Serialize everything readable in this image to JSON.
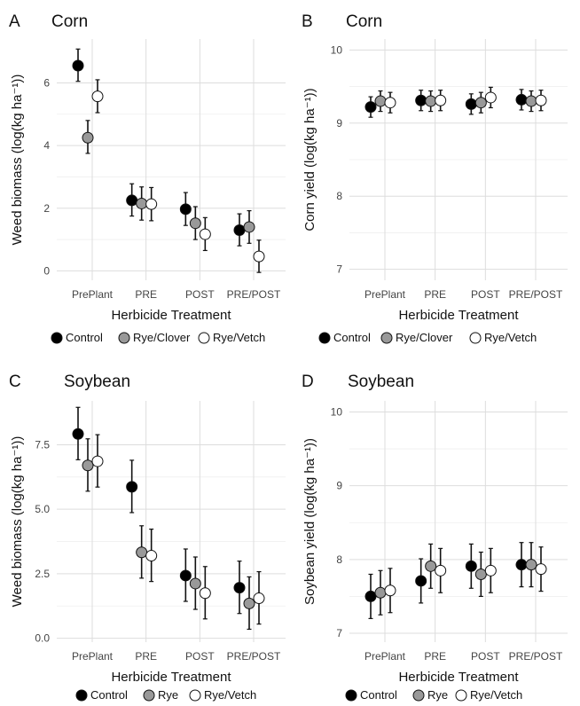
{
  "chart_data": [
    {
      "panel_label": "A",
      "title": "Corn",
      "type": "scatter",
      "categories": [
        "PrePlant",
        "PRE",
        "POST",
        "PRE/POST"
      ],
      "xlabel": "Herbicide Treatment",
      "ylabel": "Weed biomass (log(kg ha⁻¹))",
      "ylim": [
        -0.3,
        7.4
      ],
      "yticks": [
        0,
        2,
        4,
        6
      ],
      "grid": true,
      "legend_position": "bottom",
      "series": [
        {
          "name": "Control",
          "color": "#000000",
          "values": [
            6.55,
            2.25,
            1.97,
            1.3
          ],
          "lower": [
            6.05,
            1.75,
            1.45,
            0.8
          ],
          "upper": [
            7.08,
            2.78,
            2.5,
            1.82
          ]
        },
        {
          "name": "Rye/Clover",
          "color": "#999999",
          "values": [
            4.25,
            2.15,
            1.52,
            1.4
          ],
          "lower": [
            3.75,
            1.62,
            1.0,
            0.88
          ],
          "upper": [
            4.8,
            2.68,
            2.05,
            1.92
          ]
        },
        {
          "name": "Rye/Vetch",
          "color": "#ffffff",
          "values": [
            5.57,
            2.13,
            1.17,
            0.46
          ],
          "lower": [
            5.05,
            1.6,
            0.65,
            -0.05
          ],
          "upper": [
            6.1,
            2.66,
            1.7,
            0.98
          ]
        }
      ]
    },
    {
      "panel_label": "B",
      "title": "Corn",
      "type": "scatter",
      "categories": [
        "PrePlant",
        "PRE",
        "POST",
        "PRE/POST"
      ],
      "xlabel": "Herbicide Treatment",
      "ylabel": "Corn yield (log(kg ha⁻¹))",
      "ylim": [
        6.85,
        10.15
      ],
      "yticks": [
        7,
        8,
        9,
        10
      ],
      "grid": true,
      "legend_position": "bottom",
      "series": [
        {
          "name": "Control",
          "color": "#000000",
          "values": [
            9.22,
            9.31,
            9.26,
            9.32
          ],
          "lower": [
            9.08,
            9.17,
            9.12,
            9.18
          ],
          "upper": [
            9.36,
            9.45,
            9.4,
            9.46
          ]
        },
        {
          "name": "Rye/Clover",
          "color": "#999999",
          "values": [
            9.3,
            9.3,
            9.28,
            9.3
          ],
          "lower": [
            9.16,
            9.16,
            9.14,
            9.16
          ],
          "upper": [
            9.44,
            9.44,
            9.42,
            9.44
          ]
        },
        {
          "name": "Rye/Vetch",
          "color": "#ffffff",
          "values": [
            9.28,
            9.31,
            9.35,
            9.31
          ],
          "lower": [
            9.14,
            9.17,
            9.21,
            9.17
          ],
          "upper": [
            9.42,
            9.45,
            9.49,
            9.45
          ]
        }
      ]
    },
    {
      "panel_label": "C",
      "title": "Soybean",
      "type": "scatter",
      "categories": [
        "PrePlant",
        "PRE",
        "POST",
        "PRE/POST"
      ],
      "xlabel": "Herbicide Treatment",
      "ylabel": "Weed biomass (log(kg ha⁻¹))",
      "ylim": [
        -0.15,
        9.2
      ],
      "yticks": [
        0.0,
        2.5,
        5.0,
        7.5
      ],
      "ytick_labels": [
        "0.0",
        "2.5",
        "5.0",
        "7.5"
      ],
      "grid": true,
      "legend_position": "bottom",
      "series": [
        {
          "name": "Control",
          "color": "#000000",
          "values": [
            7.92,
            5.87,
            2.43,
            1.96
          ],
          "lower": [
            6.92,
            4.87,
            1.43,
            0.96
          ],
          "upper": [
            8.95,
            6.9,
            3.46,
            2.99
          ]
        },
        {
          "name": "Rye",
          "color": "#999999",
          "values": [
            6.7,
            3.33,
            2.12,
            1.35
          ],
          "lower": [
            5.7,
            2.33,
            1.12,
            0.35
          ],
          "upper": [
            7.73,
            4.36,
            3.15,
            2.38
          ]
        },
        {
          "name": "Rye/Vetch",
          "color": "#ffffff",
          "values": [
            6.86,
            3.2,
            1.75,
            1.55
          ],
          "lower": [
            5.86,
            2.2,
            0.75,
            0.55
          ],
          "upper": [
            7.89,
            4.23,
            2.78,
            2.58
          ]
        }
      ]
    },
    {
      "panel_label": "D",
      "title": "Soybean",
      "type": "scatter",
      "categories": [
        "PrePlant",
        "PRE",
        "POST",
        "PRE/POST"
      ],
      "xlabel": "Herbicide Treatment",
      "ylabel": "Soybean yield (log(kg ha⁻¹))",
      "ylim": [
        6.88,
        10.15
      ],
      "yticks": [
        7,
        8,
        9,
        10
      ],
      "grid": true,
      "legend_position": "bottom",
      "series": [
        {
          "name": "Control",
          "color": "#000000",
          "values": [
            7.5,
            7.71,
            7.91,
            7.93
          ],
          "lower": [
            7.2,
            7.41,
            7.61,
            7.63
          ],
          "upper": [
            7.8,
            8.01,
            8.21,
            8.23
          ]
        },
        {
          "name": "Rye",
          "color": "#999999",
          "values": [
            7.55,
            7.91,
            7.8,
            7.93
          ],
          "lower": [
            7.25,
            7.61,
            7.5,
            7.63
          ],
          "upper": [
            7.85,
            8.21,
            8.1,
            8.23
          ]
        },
        {
          "name": "Rye/Vetch",
          "color": "#ffffff",
          "values": [
            7.58,
            7.85,
            7.85,
            7.87
          ],
          "lower": [
            7.28,
            7.55,
            7.55,
            7.57
          ],
          "upper": [
            7.88,
            8.15,
            8.15,
            8.17
          ]
        }
      ]
    }
  ]
}
